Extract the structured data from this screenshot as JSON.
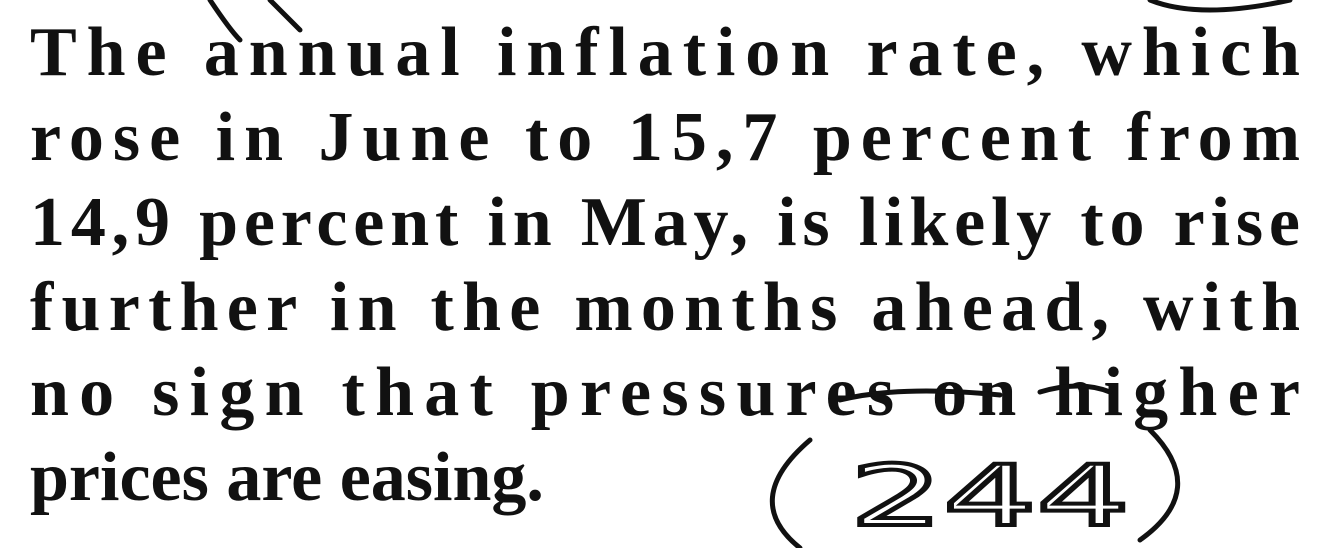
{
  "document": {
    "lines": [
      "The annual inflation rate, which",
      "rose in June to 15,7 percent from",
      "14,9 percent in May, is likely to rise",
      "further in the months ahead, with",
      "no sign that pressures on higher",
      "prices are easing."
    ],
    "annotation": "244"
  }
}
